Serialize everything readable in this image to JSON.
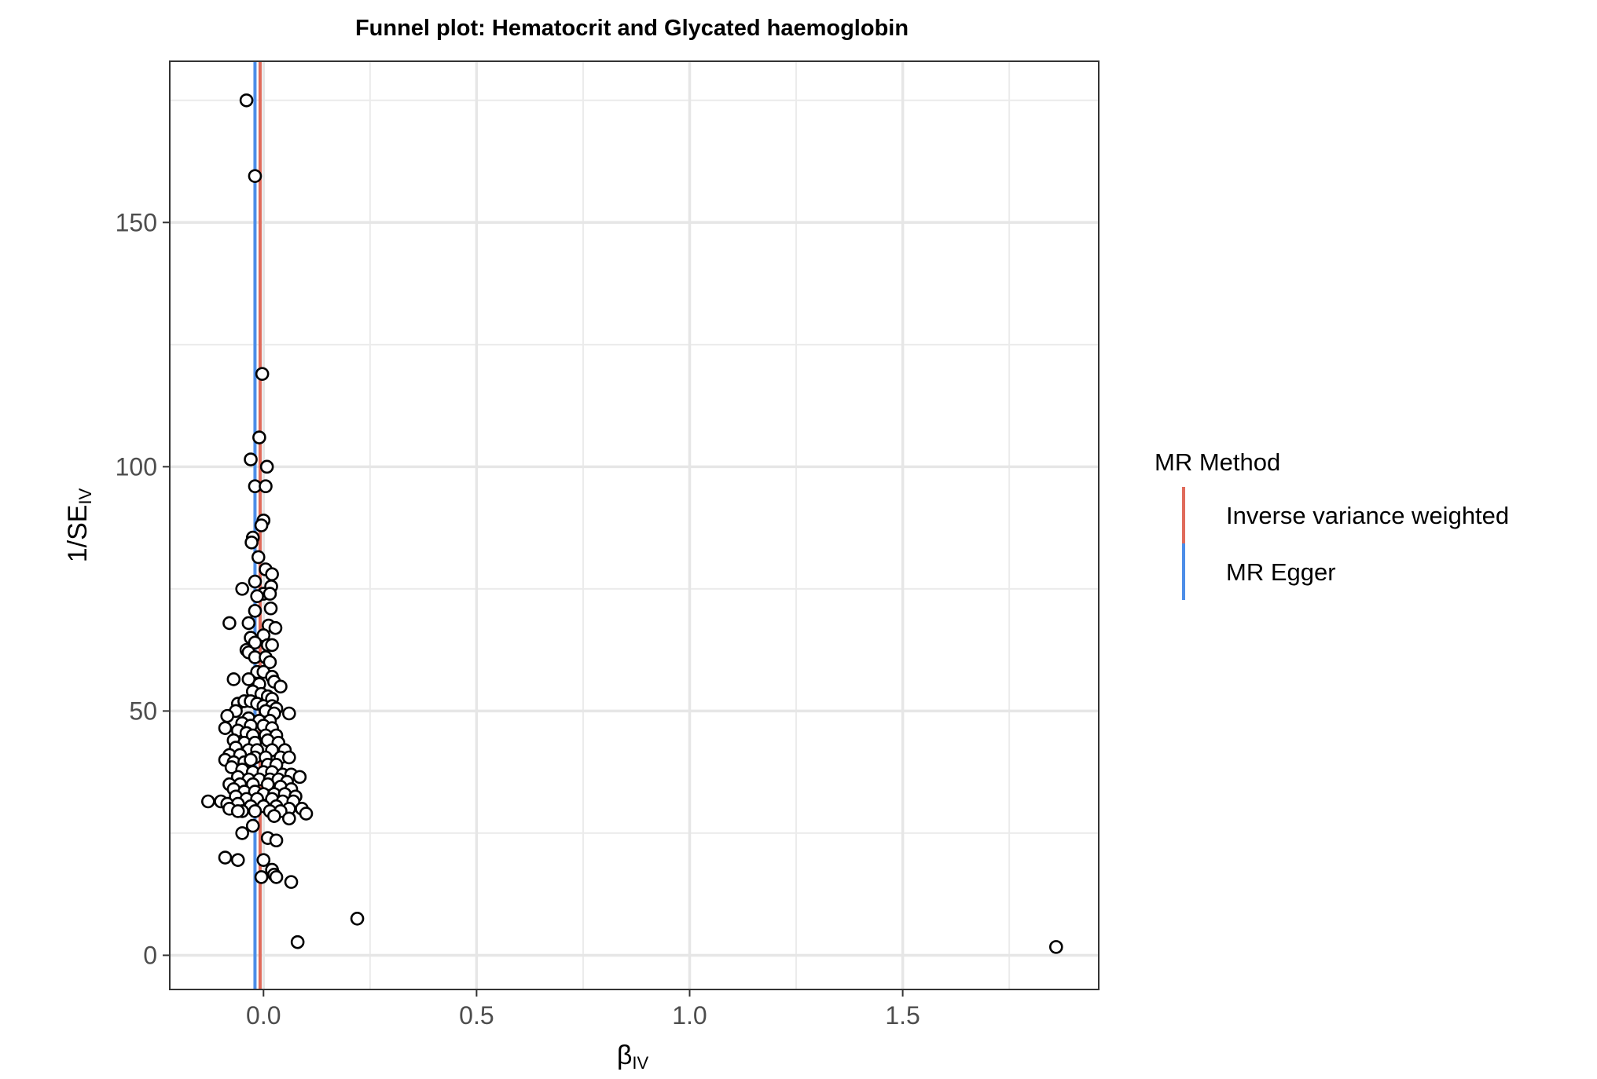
{
  "chart_data": {
    "type": "scatter",
    "title": "Funnel plot: Hematocrit and Glycated haemoglobin",
    "xlabel": {
      "main": "β",
      "sub": "IV"
    },
    "ylabel": {
      "main": "1/SE",
      "sub": "IV"
    },
    "xlim": [
      -0.22,
      1.96
    ],
    "ylim": [
      -7,
      183
    ],
    "x_ticks": [
      0.0,
      0.5,
      1.0,
      1.5
    ],
    "x_tick_labels": [
      "0.0",
      "0.5",
      "1.0",
      "1.5"
    ],
    "y_ticks": [
      0,
      50,
      100,
      150
    ],
    "y_tick_labels": [
      "0",
      "50",
      "100",
      "150"
    ],
    "grid": true,
    "legend": {
      "title": "MR Method",
      "position": "right",
      "entries": [
        {
          "label": "Inverse variance weighted",
          "color": "#e06b5b"
        },
        {
          "label": "MR Egger",
          "color": "#4c8de8"
        }
      ]
    },
    "vertical_lines": [
      {
        "method": "Inverse variance weighted",
        "x": -0.008,
        "color": "#e06b5b"
      },
      {
        "method": "MR Egger",
        "x": -0.02,
        "color": "#4c8de8"
      }
    ],
    "points": [
      [
        -0.04,
        175
      ],
      [
        -0.02,
        159.5
      ],
      [
        -0.003,
        119
      ],
      [
        -0.01,
        106
      ],
      [
        -0.03,
        101.5
      ],
      [
        0.008,
        100
      ],
      [
        -0.02,
        96
      ],
      [
        0.005,
        96
      ],
      [
        0.0,
        89
      ],
      [
        -0.005,
        88
      ],
      [
        -0.025,
        85.5
      ],
      [
        -0.028,
        84.5
      ],
      [
        -0.012,
        81.5
      ],
      [
        0.005,
        79
      ],
      [
        0.02,
        78
      ],
      [
        -0.05,
        75
      ],
      [
        0.018,
        75.5
      ],
      [
        -0.02,
        76.5
      ],
      [
        0.0,
        74
      ],
      [
        0.015,
        74
      ],
      [
        -0.015,
        73.5
      ],
      [
        0.017,
        71
      ],
      [
        -0.02,
        70.5
      ],
      [
        -0.08,
        68
      ],
      [
        -0.035,
        68
      ],
      [
        0.012,
        67.5
      ],
      [
        0.028,
        67
      ],
      [
        -0.03,
        65
      ],
      [
        0.0,
        65.5
      ],
      [
        -0.02,
        64
      ],
      [
        0.01,
        63.5
      ],
      [
        0.02,
        63.5
      ],
      [
        -0.04,
        62.5
      ],
      [
        -0.035,
        62
      ],
      [
        -0.02,
        61
      ],
      [
        0.005,
        61
      ],
      [
        0.015,
        60
      ],
      [
        -0.015,
        58
      ],
      [
        0.0,
        58
      ],
      [
        -0.07,
        56.5
      ],
      [
        -0.035,
        56.5
      ],
      [
        0.02,
        57
      ],
      [
        0.025,
        56
      ],
      [
        -0.01,
        55.5
      ],
      [
        0.04,
        55
      ],
      [
        -0.025,
        54
      ],
      [
        -0.005,
        53.5
      ],
      [
        0.01,
        53
      ],
      [
        0.02,
        52.5
      ],
      [
        -0.06,
        51.5
      ],
      [
        -0.045,
        52
      ],
      [
        -0.03,
        52
      ],
      [
        -0.015,
        51.5
      ],
      [
        0.0,
        51
      ],
      [
        0.02,
        51
      ],
      [
        0.03,
        50.5
      ],
      [
        -0.065,
        50
      ],
      [
        0.005,
        50
      ],
      [
        0.025,
        49.5
      ],
      [
        0.06,
        49.5
      ],
      [
        -0.085,
        49
      ],
      [
        -0.035,
        48.5
      ],
      [
        -0.01,
        48
      ],
      [
        0.015,
        48
      ],
      [
        -0.05,
        47.5
      ],
      [
        -0.03,
        47
      ],
      [
        0.0,
        47
      ],
      [
        0.02,
        46.5
      ],
      [
        -0.09,
        46.5
      ],
      [
        -0.06,
        46
      ],
      [
        -0.04,
        45.5
      ],
      [
        -0.025,
        45
      ],
      [
        0.005,
        45
      ],
      [
        0.03,
        45
      ],
      [
        -0.07,
        44
      ],
      [
        -0.045,
        43.5
      ],
      [
        -0.02,
        43.5
      ],
      [
        0.01,
        44
      ],
      [
        0.035,
        43.5
      ],
      [
        -0.065,
        42.5
      ],
      [
        -0.035,
        42
      ],
      [
        -0.015,
        42
      ],
      [
        0.02,
        42
      ],
      [
        0.05,
        42
      ],
      [
        -0.08,
        41
      ],
      [
        -0.055,
        41
      ],
      [
        -0.02,
        40.5
      ],
      [
        0.005,
        40.5
      ],
      [
        0.04,
        40.5
      ],
      [
        0.06,
        40.5
      ],
      [
        -0.09,
        40
      ],
      [
        -0.07,
        39.5
      ],
      [
        -0.045,
        39.5
      ],
      [
        -0.03,
        40
      ],
      [
        0.01,
        39
      ],
      [
        0.03,
        39
      ],
      [
        -0.075,
        38.5
      ],
      [
        -0.05,
        38
      ],
      [
        -0.025,
        37.5
      ],
      [
        0.0,
        37.5
      ],
      [
        0.02,
        37.5
      ],
      [
        0.045,
        37
      ],
      [
        0.065,
        37
      ],
      [
        0.085,
        36.5
      ],
      [
        -0.06,
        36.5
      ],
      [
        -0.035,
        36
      ],
      [
        -0.01,
        36
      ],
      [
        0.015,
        36
      ],
      [
        0.035,
        36
      ],
      [
        0.055,
        35.5
      ],
      [
        -0.08,
        35
      ],
      [
        -0.055,
        35
      ],
      [
        -0.025,
        35
      ],
      [
        0.01,
        35
      ],
      [
        0.04,
        34.5
      ],
      [
        0.065,
        34
      ],
      [
        -0.07,
        34
      ],
      [
        -0.045,
        33.5
      ],
      [
        -0.02,
        33.5
      ],
      [
        0.0,
        33
      ],
      [
        0.025,
        33
      ],
      [
        0.05,
        33
      ],
      [
        0.075,
        32.5
      ],
      [
        -0.065,
        32.5
      ],
      [
        -0.04,
        32
      ],
      [
        -0.015,
        32
      ],
      [
        0.02,
        32
      ],
      [
        0.045,
        31.5
      ],
      [
        0.07,
        31.5
      ],
      [
        -0.13,
        31.5
      ],
      [
        -0.1,
        31.5
      ],
      [
        -0.085,
        31
      ],
      [
        -0.06,
        31
      ],
      [
        -0.03,
        30.5
      ],
      [
        0.0,
        30.5
      ],
      [
        0.03,
        30.5
      ],
      [
        0.06,
        30
      ],
      [
        0.09,
        30
      ],
      [
        -0.05,
        29.5
      ],
      [
        -0.02,
        29.5
      ],
      [
        0.015,
        29.5
      ],
      [
        0.04,
        29.5
      ],
      [
        0.1,
        29
      ],
      [
        -0.08,
        30
      ],
      [
        -0.06,
        29.5
      ],
      [
        0.025,
        28.5
      ],
      [
        0.06,
        28
      ],
      [
        -0.025,
        26.5
      ],
      [
        -0.05,
        25
      ],
      [
        0.01,
        24
      ],
      [
        0.03,
        23.5
      ],
      [
        -0.09,
        20
      ],
      [
        -0.06,
        19.5
      ],
      [
        0.0,
        19.5
      ],
      [
        0.02,
        17.5
      ],
      [
        0.025,
        16.5
      ],
      [
        -0.005,
        16
      ],
      [
        0.03,
        16
      ],
      [
        0.065,
        15
      ],
      [
        0.22,
        7.5
      ],
      [
        0.08,
        2.7
      ],
      [
        1.86,
        1.7
      ]
    ]
  }
}
